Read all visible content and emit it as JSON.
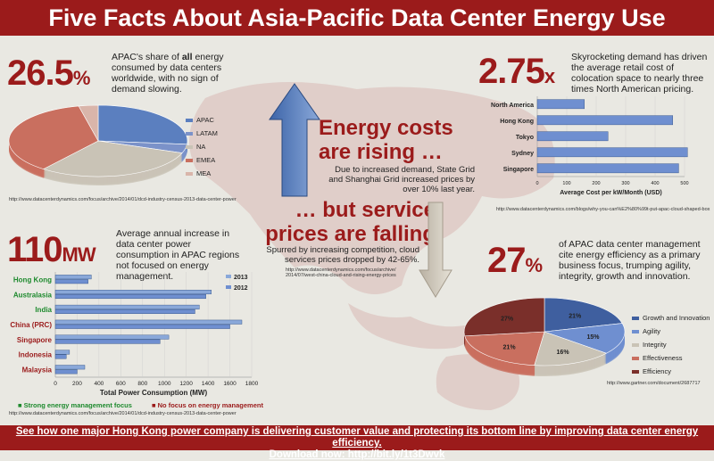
{
  "title": "Five Facts About Asia-Pacific Data Center Energy Use",
  "fact1": {
    "big": "26.5",
    "unit": "%",
    "text_pre": "APAC's share of ",
    "text_bold": "all",
    "text_post": " energy consumed by data centers worldwide, with no sign of demand slowing.",
    "url": "http://www.datacenterdynamics.com/focus/archive/2014/01/dcd-industry-census-2013-data-center-power",
    "legend": [
      "APAC",
      "LATAM",
      "NA",
      "EMEA",
      "MEA"
    ],
    "colors": [
      "#5b7fbf",
      "#7b92c9",
      "#c9c3b6",
      "#c96f5f",
      "#d9b5aa"
    ]
  },
  "fact2": {
    "big": "2.75",
    "unit": "x",
    "text": "Skyrocketing demand has driven the average retail cost of colocation space to nearly three times North American pricing.",
    "url": "http://www.datacenterdynamics.com/blogs/why-you-can%E2%80%99t-put-apac-cloud-shaped-box",
    "xlabel": "Average Cost per kW/Month  (USD)"
  },
  "center": {
    "rising_head": "Energy costs are rising …",
    "rising_text": "Due to increased demand, State Grid and Shanghai Grid increased prices by over 10% last year.",
    "falling_head": "… but service prices are falling",
    "falling_text": "Spurred by increasing competition, cloud services prices dropped by 42-65%.",
    "url": "http://www.datacenterdynamics.com/focus/archive/ 2014/07/west-china-cloud-and-rising-energy-prices"
  },
  "fact3": {
    "big": "110",
    "unit": "MW",
    "text": "Average annual increase in data center power consumption in APAC regions not focused on energy management.",
    "url": "http://www.datacenterdynamics.com/focus/archive/2014/01/dcd-industry-census-2013-data-center-power",
    "xlabel": "Total Power Consumption (MW)",
    "legend_2013": "2013",
    "legend_2012": "2012",
    "key_green": "Strong energy management focus",
    "key_red": "No focus on energy management"
  },
  "fact4": {
    "big": "27",
    "unit": "%",
    "text": "of APAC data center management cite energy efficiency as a primary business focus, trumping agility, integrity, growth and innovation.",
    "url": "http://www.gartner.com/document/2687717",
    "legend": [
      "Growth and Innovation",
      "Agility",
      "Integrity",
      "Effectiveness",
      "Efficiency"
    ],
    "colors": [
      "#3f5f9f",
      "#6f8fd0",
      "#c9c3b6",
      "#c96f5f",
      "#7a2f2a"
    ]
  },
  "footer": {
    "line1": "See how one major Hong Kong power company is delivering customer value and protecting its bottom line by improving data center energy efficiency.",
    "line2": "Download now: http://bit.ly/1t3Dwvk"
  },
  "chart_data": [
    {
      "type": "pie",
      "categories": [
        "APAC",
        "LATAM",
        "NA",
        "EMEA",
        "MEA"
      ],
      "values": [
        26.5,
        4,
        30,
        36,
        3.5
      ]
    },
    {
      "type": "bar",
      "orientation": "horizontal",
      "categories": [
        "North America",
        "Hong Kong",
        "Tokyo",
        "Sydney",
        "Singapore"
      ],
      "values": [
        160,
        460,
        240,
        510,
        480
      ],
      "xlabel": "Average Cost per kW/Month  (USD)",
      "xlim": [
        0,
        500
      ],
      "xticks": [
        "0",
        "100",
        "200",
        "300",
        "400",
        "500"
      ]
    },
    {
      "type": "bar",
      "orientation": "horizontal",
      "categories": [
        "Hong Kong",
        "Australasia",
        "India",
        "China (PRC)",
        "Singapore",
        "Indonesia",
        "Malaysia"
      ],
      "category_colors": [
        "#1e8a2e",
        "#1e8a2e",
        "#1e8a2e",
        "#9b1b1b",
        "#9b1b1b",
        "#9b1b1b",
        "#9b1b1b"
      ],
      "series": [
        {
          "name": "2013",
          "values": [
            330,
            1430,
            1320,
            1710,
            1040,
            130,
            270
          ]
        },
        {
          "name": "2012",
          "values": [
            300,
            1380,
            1280,
            1600,
            960,
            100,
            200
          ]
        }
      ],
      "xlabel": "Total Power Consumption (MW)",
      "xlim": [
        0,
        1800
      ],
      "xticks": [
        "0",
        "200",
        "400",
        "600",
        "800",
        "1000",
        "1200",
        "1400",
        "1600",
        "1800"
      ]
    },
    {
      "type": "pie",
      "categories": [
        "Growth and Innovation",
        "Agility",
        "Integrity",
        "Effectiveness",
        "Efficiency"
      ],
      "values": [
        21,
        15,
        16,
        21,
        27
      ],
      "labels": [
        "21%",
        "15%",
        "16%",
        "21%",
        "27%"
      ]
    }
  ]
}
